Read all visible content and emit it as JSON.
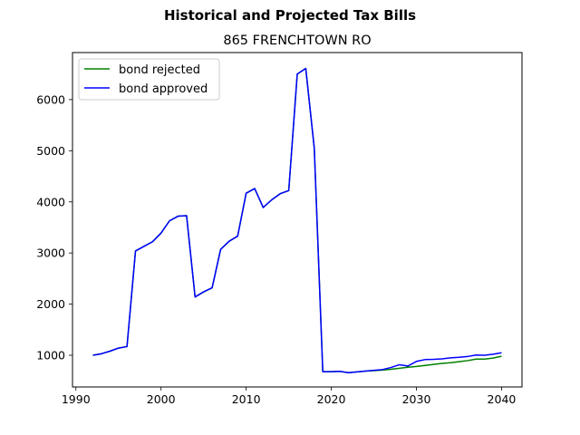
{
  "chart_data": {
    "type": "line",
    "suptitle": "Historical and Projected Tax Bills",
    "title": "865 FRENCHTOWN RO",
    "xlabel": "",
    "ylabel": "",
    "xlim": [
      1989.6,
      2042.4
    ],
    "ylim": [
      380,
      6920
    ],
    "xticks": [
      1990,
      2000,
      2010,
      2020,
      2030,
      2040
    ],
    "yticks": [
      1000,
      2000,
      3000,
      4000,
      5000,
      6000
    ],
    "grid": false,
    "legend_position": "top-left",
    "x": [
      1992,
      1993,
      1994,
      1995,
      1996,
      1997,
      1998,
      1999,
      2000,
      2001,
      2002,
      2003,
      2004,
      2005,
      2006,
      2007,
      2008,
      2009,
      2010,
      2011,
      2012,
      2013,
      2014,
      2015,
      2016,
      2017,
      2018,
      2019,
      2020,
      2021,
      2022,
      2023,
      2024,
      2025,
      2026,
      2027,
      2028,
      2029,
      2030,
      2031,
      2032,
      2033,
      2034,
      2035,
      2036,
      2037,
      2038,
      2039,
      2040
    ],
    "series": [
      {
        "name": "bond rejected",
        "color": "#008000",
        "values": [
          1000,
          1030,
          1080,
          1140,
          1170,
          3040,
          3130,
          3220,
          3390,
          3630,
          3720,
          3730,
          2140,
          2240,
          2320,
          3070,
          3230,
          3330,
          4170,
          4260,
          3890,
          4040,
          4160,
          4220,
          6500,
          6610,
          5050,
          680,
          680,
          685,
          660,
          675,
          690,
          700,
          710,
          725,
          745,
          765,
          780,
          800,
          820,
          840,
          855,
          875,
          895,
          925,
          925,
          945,
          980
        ]
      },
      {
        "name": "bond approved",
        "color": "#0000ff",
        "values": [
          1000,
          1030,
          1080,
          1140,
          1170,
          3040,
          3130,
          3220,
          3390,
          3630,
          3720,
          3730,
          2140,
          2240,
          2320,
          3070,
          3230,
          3330,
          4170,
          4260,
          3890,
          4040,
          4160,
          4220,
          6500,
          6610,
          5050,
          680,
          680,
          685,
          660,
          675,
          690,
          705,
          720,
          760,
          815,
          790,
          880,
          915,
          920,
          930,
          950,
          960,
          975,
          1005,
          1000,
          1020,
          1050
        ]
      }
    ]
  }
}
